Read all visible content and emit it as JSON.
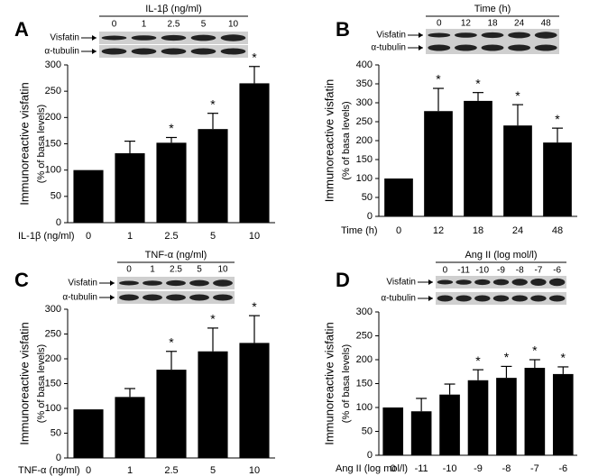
{
  "chart_data": [
    {
      "type": "bar",
      "panel_label": "A",
      "xlabel": "IL-1β (ng/ml)",
      "ylabel": "Immunoreactive visfatin",
      "ylabel_sub": "(% of  basa levels)",
      "blot": {
        "title": "IL-1β (ng/ml)",
        "lanes": [
          "0",
          "1",
          "2.5",
          "5",
          "10"
        ],
        "rows": [
          "Visfatin",
          "α-tubulin"
        ]
      },
      "categories": [
        "0",
        "1",
        "2.5",
        "5",
        "10"
      ],
      "values": [
        100,
        132,
        152,
        178,
        265
      ],
      "errors": [
        0,
        23,
        10,
        30,
        32
      ],
      "annotations": [
        null,
        null,
        "*",
        "*",
        "*"
      ],
      "color": "#000000",
      "ylim": [
        0,
        300
      ],
      "yticks": [
        0,
        50,
        100,
        150,
        200,
        250,
        300
      ]
    },
    {
      "type": "bar",
      "panel_label": "B",
      "xlabel": "Time (h)",
      "ylabel": "Immunoreactive visfatin",
      "ylabel_sub": "(% of  basa levels)",
      "blot": {
        "title": "Time (h)",
        "lanes": [
          "0",
          "12",
          "18",
          "24",
          "48"
        ],
        "rows": [
          "Visfatin",
          "α-tubulin"
        ]
      },
      "categories": [
        "0",
        "12",
        "18",
        "24",
        "48"
      ],
      "values": [
        100,
        278,
        305,
        240,
        195
      ],
      "errors": [
        0,
        60,
        22,
        55,
        38
      ],
      "annotations": [
        null,
        "*",
        "*",
        "*",
        "*"
      ],
      "color": "#000000",
      "ylim": [
        0,
        400
      ],
      "yticks": [
        0,
        50,
        100,
        150,
        200,
        250,
        300,
        350,
        400
      ]
    },
    {
      "type": "bar",
      "panel_label": "C",
      "xlabel": "TNF-α (ng/ml)",
      "ylabel": "Immunoreactive visfatin",
      "ylabel_sub": "(% of  basa levels)",
      "blot": {
        "title": "TNF-α (ng/ml)",
        "lanes": [
          "0",
          "1",
          "2.5",
          "5",
          "10"
        ],
        "rows": [
          "Visfatin",
          "α-tubulin"
        ]
      },
      "categories": [
        "0",
        "1",
        "2.5",
        "5",
        "10"
      ],
      "values": [
        98,
        123,
        178,
        215,
        232
      ],
      "errors": [
        0,
        17,
        37,
        47,
        55
      ],
      "annotations": [
        null,
        null,
        "*",
        "*",
        "*"
      ],
      "color": "#000000",
      "ylim": [
        0,
        300
      ],
      "yticks": [
        0,
        50,
        100,
        150,
        200,
        250,
        300
      ]
    },
    {
      "type": "bar",
      "panel_label": "D",
      "xlabel": "Ang II (log mol/l)",
      "ylabel": "Immunoreactive visfatin",
      "ylabel_sub": "(% of  basa levels)",
      "blot": {
        "title": "Ang II (log mol/l)",
        "lanes": [
          "0",
          "-11",
          "-10",
          "-9",
          "-8",
          "-7",
          "-6"
        ],
        "rows": [
          "Visfatin",
          "α-tubulin"
        ]
      },
      "categories": [
        "0",
        "-11",
        "-10",
        "-9",
        "-8",
        "-7",
        "-6"
      ],
      "values": [
        100,
        92,
        127,
        157,
        162,
        183,
        170
      ],
      "errors": [
        0,
        27,
        22,
        22,
        24,
        17,
        15
      ],
      "annotations": [
        null,
        null,
        null,
        "*",
        "*",
        "*",
        "*"
      ],
      "color": "#000000",
      "ylim": [
        0,
        300
      ],
      "yticks": [
        0,
        50,
        100,
        150,
        200,
        250,
        300
      ]
    }
  ]
}
